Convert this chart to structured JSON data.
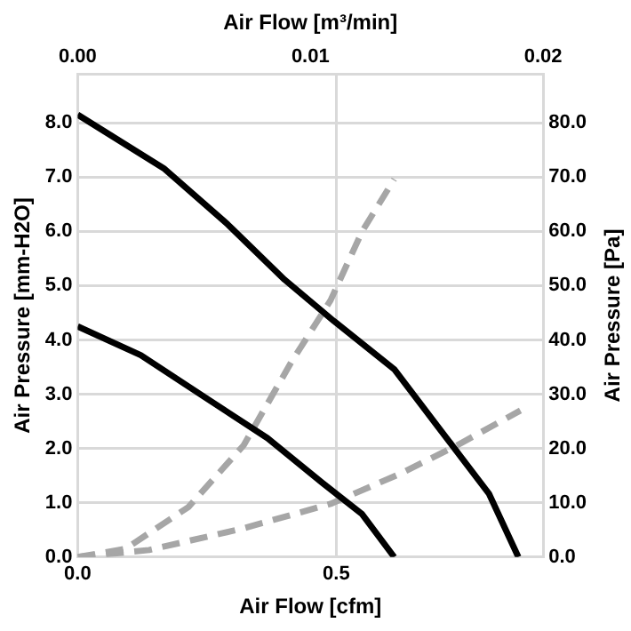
{
  "chart_data": {
    "type": "line",
    "xlabel": "Air Flow [cfm]",
    "x2label": "Air Flow [m³/min]",
    "ylabel": "Air Pressure [mm-H2O]",
    "y2label": "Air Pressure [Pa]",
    "xlim": [
      0,
      0.9
    ],
    "xticks": [
      {
        "value": 0,
        "label": "0.0"
      },
      0.5
    ],
    "x2lim": [
      0,
      0.02
    ],
    "x2ticks": [
      {
        "value": 0,
        "label": "0.00"
      },
      0.01,
      0.02
    ],
    "ylim": [
      0,
      8.9
    ],
    "yticks": [
      {
        "value": 0,
        "label": "0.0"
      },
      {
        "value": 1,
        "label": "1.0"
      },
      {
        "value": 2,
        "label": "2.0"
      },
      {
        "value": 3,
        "label": "3.0"
      },
      {
        "value": 4,
        "label": "4.0"
      },
      {
        "value": 5,
        "label": "5.0"
      },
      {
        "value": 6,
        "label": "6.0"
      },
      {
        "value": 7,
        "label": "7.0"
      },
      {
        "value": 8,
        "label": "8.0"
      }
    ],
    "y2lim": [
      0,
      89
    ],
    "y2ticks": [
      {
        "value": 0,
        "label": "0.0"
      },
      {
        "value": 10,
        "label": "10.0"
      },
      {
        "value": 20,
        "label": "20.0"
      },
      {
        "value": 30,
        "label": "30.0"
      },
      {
        "value": 40,
        "label": "40.0"
      },
      {
        "value": 50,
        "label": "50.0"
      },
      {
        "value": 60,
        "label": "60.0"
      },
      {
        "value": 70,
        "label": "70.0"
      },
      {
        "value": 80,
        "label": "80.0"
      }
    ],
    "grid": true,
    "legend": false,
    "marker": "none",
    "series": [
      {
        "color": "#000000",
        "line_style": "solid",
        "x": [
          0,
          0.168,
          0.29,
          0.4,
          0.495,
          0.612,
          0.703,
          0.795,
          0.852
        ],
        "values": [
          8.15,
          7.15,
          6.13,
          5.11,
          4.35,
          3.46,
          2.32,
          1.17,
          0
        ]
      },
      {
        "color": "#000000",
        "line_style": "solid",
        "x": [
          0,
          0.122,
          0.245,
          0.367,
          0.474,
          0.55,
          0.612
        ],
        "values": [
          4.25,
          3.72,
          2.95,
          2.19,
          1.36,
          0.79,
          0
        ]
      },
      {
        "color": "#a6a6a6",
        "line_style": "dashed",
        "axis": "y2",
        "x": [
          0,
          0.092,
          0.214,
          0.321,
          0.413,
          0.489,
          0.55,
          0.612
        ],
        "values": [
          0,
          1.5,
          9.2,
          20.6,
          35.9,
          47.3,
          60,
          69.6
        ]
      },
      {
        "color": "#a6a6a6",
        "line_style": "dashed",
        "axis": "y2",
        "x": [
          0,
          0.138,
          0.321,
          0.489,
          0.627,
          0.734,
          0.856
        ],
        "values": [
          0,
          1.3,
          5.3,
          9.8,
          15.5,
          20.6,
          27
        ]
      }
    ]
  }
}
